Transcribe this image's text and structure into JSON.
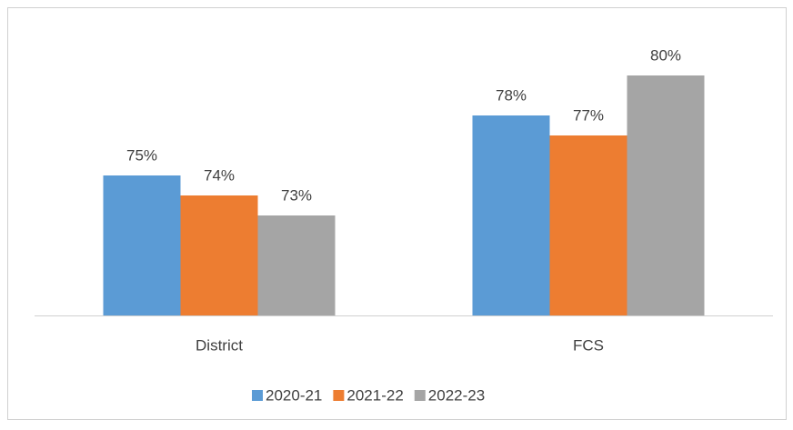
{
  "chart_data": {
    "type": "bar",
    "categories": [
      "District",
      "FCS"
    ],
    "series": [
      {
        "name": "2020-21",
        "color": "#5b9bd5",
        "values": [
          75,
          78
        ],
        "value_labels": [
          "75%",
          "78%"
        ]
      },
      {
        "name": "2021-22",
        "color": "#ed7d31",
        "values": [
          74,
          77
        ],
        "value_labels": [
          "74%",
          "77%"
        ]
      },
      {
        "name": "2022-23",
        "color": "#a5a5a5",
        "values": [
          73,
          80
        ],
        "value_labels": [
          "73%",
          "80%"
        ]
      }
    ],
    "ylim": [
      68,
      82
    ],
    "legend": "bottom"
  }
}
